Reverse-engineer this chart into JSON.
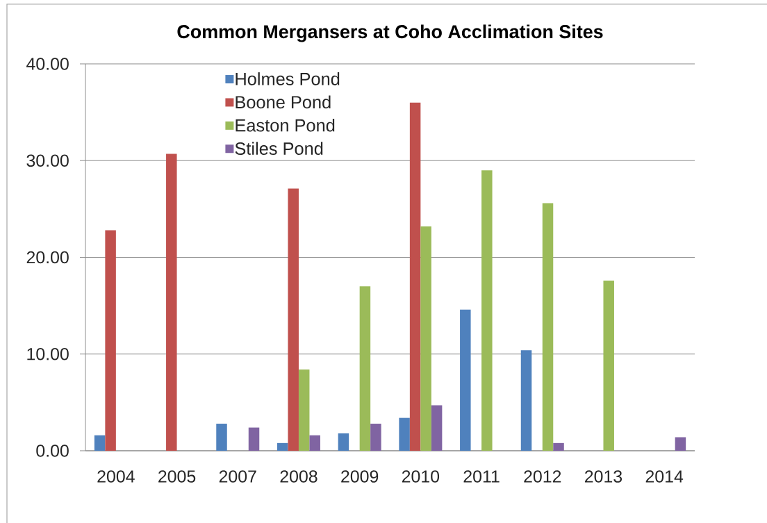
{
  "chart_data": {
    "type": "bar",
    "title": "Common Mergansers at Coho Acclimation Sites",
    "categories": [
      "2004",
      "2005",
      "2007",
      "2008",
      "2009",
      "2010",
      "2011",
      "2012",
      "2013",
      "2014"
    ],
    "series": [
      {
        "name": "Holmes Pond",
        "color": "#4f81bd",
        "values": [
          1.6,
          null,
          2.8,
          0.8,
          1.8,
          3.4,
          14.6,
          10.4,
          null,
          null
        ]
      },
      {
        "name": "Boone Pond",
        "color": "#c0504d",
        "values": [
          22.8,
          30.7,
          null,
          27.1,
          null,
          36.0,
          null,
          null,
          null,
          null
        ]
      },
      {
        "name": "Easton Pond",
        "color": "#9bbb59",
        "values": [
          null,
          null,
          null,
          8.4,
          17.0,
          23.2,
          29.0,
          25.6,
          17.6,
          null
        ]
      },
      {
        "name": "Stiles Pond",
        "color": "#8064a2",
        "values": [
          null,
          null,
          2.4,
          1.6,
          2.8,
          4.7,
          null,
          0.8,
          null,
          1.4
        ]
      }
    ],
    "ylim": [
      0,
      40
    ],
    "yticks": [
      {
        "value": 0,
        "label": "0.00"
      },
      {
        "value": 10,
        "label": "10.00"
      },
      {
        "value": 20,
        "label": "20.00"
      },
      {
        "value": 30,
        "label": "30.00"
      },
      {
        "value": 40,
        "label": "40.00"
      }
    ],
    "grid": "y",
    "legend": "top left"
  }
}
